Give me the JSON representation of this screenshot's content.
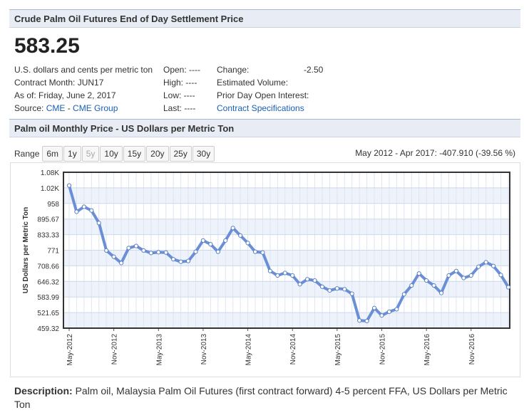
{
  "header": {
    "title": "Crude Palm Oil Futures End of Day Settlement Price"
  },
  "price": "583.25",
  "info": {
    "units": "U.S. dollars and cents per metric ton",
    "contract_month": "Contract Month: JUN17",
    "as_of": "As of: Friday, June 2, 2017",
    "source_label": "Source:",
    "source_link1": "CME",
    "source_sep": " - ",
    "source_link2": "CME Group",
    "open": "Open: ----",
    "high": "High: ----",
    "low": "Low: ----",
    "last": "Last: ----",
    "change_label": "Change:",
    "change_value": "-2.50",
    "estimated_volume": "Estimated Volume:",
    "prior_day_oi": "Prior Day Open Interest:",
    "contract_specs": "Contract Specifications"
  },
  "monthly_header": {
    "title": "Palm oil Monthly Price - US Dollars per Metric Ton"
  },
  "range": {
    "label": "Range",
    "buttons": [
      "6m",
      "1y",
      "5y",
      "10y",
      "15y",
      "20y",
      "25y",
      "30y"
    ],
    "summary": "May 2012 - Apr 2017: -407.910 (-39.56 %)"
  },
  "description": {
    "label": "Description:",
    "text": "Palm oil, Malaysia Palm Oil Futures (first contract forward) 4-5 percent FFA, US Dollars per Metric Ton"
  },
  "colors": {
    "line": "#6b8fd6",
    "accent_link": "#1a5fb4",
    "header_bg": "#e8edf5"
  },
  "chart_data": {
    "type": "line",
    "ylabel": "US Dollars per Metric Ton",
    "y_ticks": [
      "1.08K",
      "1.02K",
      "958",
      "895.67",
      "833.33",
      "771",
      "708.66",
      "646.32",
      "583.99",
      "521.65",
      "459.32"
    ],
    "ylim": [
      459.32,
      1083
    ],
    "x_ticks": [
      "May-2012",
      "Nov-2012",
      "May-2013",
      "Nov-2013",
      "May-2014",
      "Nov-2014",
      "May-2015",
      "Nov-2015",
      "May-2016",
      "Nov-2016"
    ],
    "x_months": [
      "May-2012",
      "Jun-2012",
      "Jul-2012",
      "Aug-2012",
      "Sep-2012",
      "Oct-2012",
      "Nov-2012",
      "Dec-2012",
      "Jan-2013",
      "Feb-2013",
      "Mar-2013",
      "Apr-2013",
      "May-2013",
      "Jun-2013",
      "Jul-2013",
      "Aug-2013",
      "Sep-2013",
      "Oct-2013",
      "Nov-2013",
      "Dec-2013",
      "Jan-2014",
      "Feb-2014",
      "Mar-2014",
      "Apr-2014",
      "May-2014",
      "Jun-2014",
      "Jul-2014",
      "Aug-2014",
      "Sep-2014",
      "Oct-2014",
      "Nov-2014",
      "Dec-2014",
      "Jan-2015",
      "Feb-2015",
      "Mar-2015",
      "Apr-2015",
      "May-2015",
      "Jun-2015",
      "Jul-2015",
      "Aug-2015",
      "Sep-2015",
      "Oct-2015",
      "Nov-2015",
      "Dec-2015",
      "Jan-2016",
      "Feb-2016",
      "Mar-2016",
      "Apr-2016",
      "May-2016",
      "Jun-2016",
      "Jul-2016",
      "Aug-2016",
      "Sep-2016",
      "Oct-2016",
      "Nov-2016",
      "Dec-2016",
      "Jan-2017",
      "Feb-2017",
      "Mar-2017",
      "Apr-2017"
    ],
    "values": [
      1030,
      925,
      945,
      930,
      880,
      770,
      745,
      720,
      780,
      788,
      770,
      760,
      763,
      762,
      735,
      725,
      728,
      765,
      810,
      795,
      765,
      810,
      860,
      830,
      800,
      765,
      762,
      688,
      670,
      680,
      670,
      635,
      655,
      650,
      625,
      610,
      618,
      615,
      597,
      490,
      488,
      540,
      510,
      525,
      535,
      595,
      630,
      678,
      650,
      630,
      600,
      670,
      688,
      660,
      670,
      705,
      723,
      708,
      672,
      623
    ],
    "grid": true,
    "legend": "none"
  }
}
